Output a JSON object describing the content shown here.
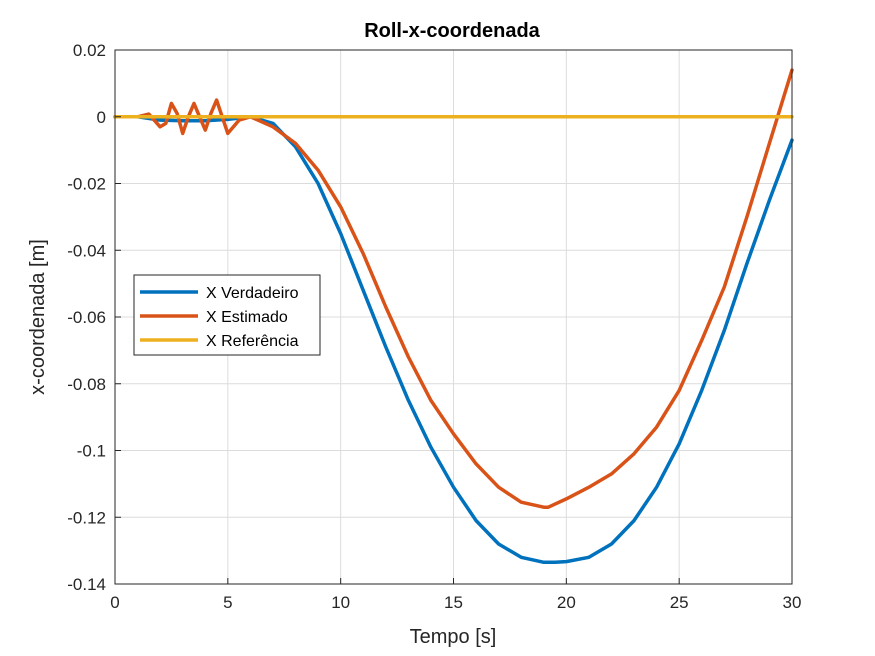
{
  "chart_data": {
    "type": "line",
    "title": "Roll-x-coordenada",
    "xlabel": "Tempo [s]",
    "ylabel": "x-coordenada [m]",
    "xlim": [
      0,
      30
    ],
    "ylim": [
      -0.14,
      0.02
    ],
    "xticks": [
      0,
      5,
      10,
      15,
      20,
      25,
      30
    ],
    "yticks": [
      0.02,
      0,
      -0.02,
      -0.04,
      -0.06,
      -0.08,
      -0.1,
      -0.12,
      -0.14
    ],
    "xtick_labels": [
      "0",
      "5",
      "10",
      "15",
      "20",
      "25",
      "30"
    ],
    "ytick_labels": [
      "0.02",
      "0",
      "-0.02",
      "-0.04",
      "-0.06",
      "-0.08",
      "-0.1",
      "-0.12",
      "-0.14"
    ],
    "grid": true,
    "legend_position": "center-left",
    "series": [
      {
        "name": "X Verdadeiro",
        "color": "#0072BD",
        "x": [
          0,
          1,
          2,
          3,
          4,
          5,
          6,
          7,
          8,
          9,
          10,
          11,
          12,
          13,
          14,
          15,
          16,
          17,
          18,
          19,
          19.5,
          20,
          21,
          22,
          23,
          24,
          25,
          26,
          27,
          28,
          29,
          30
        ],
        "y": [
          0,
          0,
          -0.001,
          -0.0012,
          -0.0012,
          -0.0008,
          0,
          -0.002,
          -0.009,
          -0.02,
          -0.035,
          -0.052,
          -0.069,
          -0.085,
          -0.099,
          -0.111,
          -0.121,
          -0.128,
          -0.132,
          -0.1335,
          -0.1335,
          -0.1333,
          -0.132,
          -0.128,
          -0.121,
          -0.111,
          -0.098,
          -0.082,
          -0.064,
          -0.044,
          -0.025,
          -0.007
        ]
      },
      {
        "name": "X Estimado",
        "color": "#D95319",
        "x": [
          0,
          1,
          1.5,
          2,
          2.25,
          2.5,
          2.75,
          3,
          3.25,
          3.5,
          3.75,
          4,
          4.25,
          4.5,
          4.75,
          5,
          5.5,
          6,
          7,
          8,
          9,
          10,
          11,
          12,
          13,
          14,
          15,
          16,
          17,
          18,
          19,
          19.2,
          20,
          21,
          22,
          23,
          24,
          25,
          26,
          27,
          28,
          29,
          30
        ],
        "y": [
          0,
          0,
          0.0008,
          -0.003,
          -0.002,
          0.004,
          0.001,
          -0.005,
          0,
          0.004,
          0,
          -0.004,
          0.001,
          0.005,
          0,
          -0.005,
          -0.001,
          0,
          -0.003,
          -0.008,
          -0.016,
          -0.027,
          -0.041,
          -0.057,
          -0.072,
          -0.085,
          -0.095,
          -0.104,
          -0.111,
          -0.1155,
          -0.117,
          -0.117,
          -0.1145,
          -0.111,
          -0.107,
          -0.101,
          -0.093,
          -0.082,
          -0.067,
          -0.051,
          -0.03,
          -0.008,
          0.014
        ]
      },
      {
        "name": "X Referência",
        "color": "#EDB120",
        "x": [
          0,
          30
        ],
        "y": [
          0,
          0
        ]
      }
    ]
  }
}
